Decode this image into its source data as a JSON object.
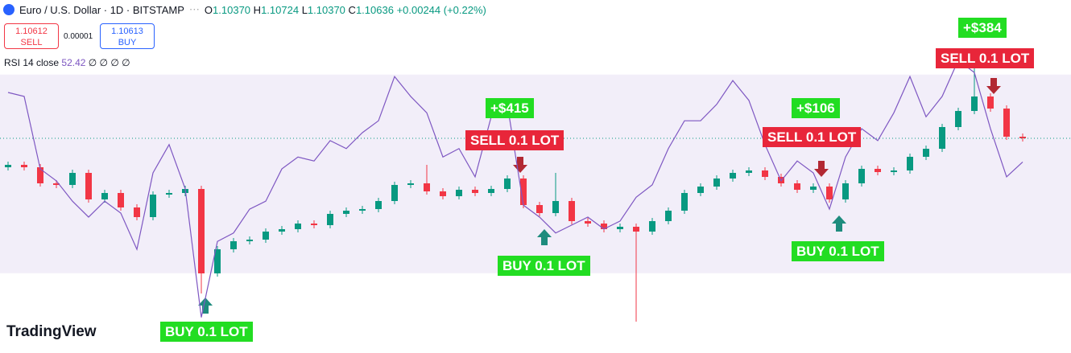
{
  "header": {
    "symbol": "Euro / U.S. Dollar · 1D · BITSTAMP",
    "ohlc": [
      {
        "label": "O",
        "value": "1.10370"
      },
      {
        "label": "H",
        "value": "1.10724"
      },
      {
        "label": "L",
        "value": "1.10370"
      },
      {
        "label": "C",
        "value": "1.10636"
      }
    ],
    "change": "+0.00244 (+0.22%)"
  },
  "trade": {
    "sell_price": "1.10612",
    "sell": "SELL",
    "spread": "0.00001",
    "buy_price": "1.10613",
    "buy": "BUY"
  },
  "logo": "TradingView",
  "chart_data": {
    "type": "candlestick",
    "ylim": [
      1.0797,
      1.1236
    ],
    "up_color": "#089981",
    "down_color": "#f23645",
    "open": [
      1.1028,
      1.1031,
      1.1028,
      1.1008,
      1.1006,
      1.1021,
      1.0988,
      1.0996,
      1.0978,
      1.0966,
      1.0994,
      1.0996,
      1.1001,
      1.0896,
      1.0926,
      1.0936,
      1.0938,
      1.0948,
      1.0951,
      1.0958,
      1.0956,
      1.097,
      1.0974,
      1.0976,
      1.0986,
      1.1006,
      1.1008,
      1.0998,
      1.0992,
      1.1,
      1.0996,
      1.1001,
      1.1014,
      1.0981,
      1.0971,
      1.0986,
      1.0961,
      1.0958,
      1.0951,
      1.0954,
      1.0948,
      1.0961,
      1.0974,
      1.0996,
      1.1004,
      1.1014,
      1.1021,
      1.1024,
      1.1016,
      1.1008,
      1.1,
      1.1004,
      1.0988,
      1.1008,
      1.1026,
      1.1022,
      1.1024,
      1.1041,
      1.1051,
      1.1078,
      1.1098,
      1.1116,
      1.1101,
      1.1066
    ],
    "high": [
      1.1035,
      1.1035,
      1.1032,
      1.1012,
      1.1025,
      1.1025,
      1.1,
      1.1,
      1.0982,
      1.0998,
      1.1,
      1.1005,
      1.1005,
      1.093,
      1.094,
      1.0942,
      1.0952,
      1.0955,
      1.0962,
      1.0962,
      1.0974,
      1.0978,
      1.098,
      1.099,
      1.101,
      1.1012,
      1.1031,
      1.1002,
      1.1004,
      1.1004,
      1.1005,
      1.1018,
      1.1018,
      1.0985,
      1.1021,
      1.099,
      1.0965,
      1.0962,
      1.0958,
      1.0958,
      1.0965,
      1.0978,
      1.1,
      1.1008,
      1.1018,
      1.1025,
      1.1028,
      1.1028,
      1.102,
      1.1012,
      1.1008,
      1.1008,
      1.1012,
      1.103,
      1.103,
      1.1028,
      1.1045,
      1.1055,
      1.1082,
      1.1102,
      1.1176,
      1.112,
      1.1105,
      1.107
    ],
    "low": [
      1.1024,
      1.1024,
      1.1004,
      1.1002,
      1.1002,
      1.0984,
      1.0984,
      1.0974,
      1.0962,
      1.0962,
      1.099,
      1.0992,
      1.0871,
      1.0892,
      1.0922,
      1.0932,
      1.0934,
      1.0944,
      1.0947,
      1.0952,
      1.0952,
      1.0966,
      1.097,
      1.0972,
      1.0982,
      1.1002,
      1.0994,
      1.0988,
      1.0988,
      1.0992,
      1.0992,
      1.0997,
      1.0977,
      1.0967,
      1.0967,
      1.0957,
      1.0954,
      1.0947,
      1.0947,
      1.0836,
      1.0944,
      1.0957,
      1.097,
      1.0992,
      1.1,
      1.101,
      1.1017,
      1.1012,
      1.1004,
      1.0996,
      1.0996,
      1.0984,
      1.0984,
      1.1004,
      1.1018,
      1.1018,
      1.102,
      1.1037,
      1.1047,
      1.1074,
      1.1094,
      1.1097,
      1.1062,
      1.106
    ],
    "close": [
      1.1031,
      1.1028,
      1.1008,
      1.1006,
      1.1021,
      1.0988,
      1.0996,
      1.0978,
      1.0966,
      1.0994,
      1.0996,
      1.1001,
      1.0896,
      1.0926,
      1.0936,
      1.0938,
      1.0948,
      1.0951,
      1.0958,
      1.0956,
      1.097,
      1.0974,
      1.0976,
      1.0986,
      1.1006,
      1.1008,
      1.0998,
      1.0992,
      1.1,
      1.0996,
      1.1001,
      1.1014,
      1.0981,
      1.0971,
      1.0986,
      1.0961,
      1.0958,
      1.0951,
      1.0954,
      1.0948,
      1.0961,
      1.0974,
      1.0996,
      1.1004,
      1.1014,
      1.1021,
      1.1024,
      1.1016,
      1.1008,
      1.1,
      1.1004,
      1.0988,
      1.1008,
      1.1026,
      1.1022,
      1.1024,
      1.1041,
      1.1051,
      1.1078,
      1.1098,
      1.1116,
      1.1101,
      1.1066,
      1.1064
    ],
    "rsi": {
      "label": "RSI 14 close",
      "last": 52.42,
      "symbols": "∅ ∅ ∅ ∅",
      "color": "#7e57c2",
      "ylim": [
        0,
        100
      ],
      "band": [
        30,
        70
      ],
      "values": [
        66.4,
        65.6,
        51.0,
        48.6,
        44.5,
        41.3,
        44.5,
        42.1,
        34.8,
        50.2,
        55.9,
        47.0,
        21.1,
        36.4,
        38.1,
        42.9,
        44.5,
        51.0,
        53.4,
        52.6,
        56.7,
        55.1,
        58.3,
        60.7,
        69.6,
        65.6,
        62.3,
        53.4,
        55.1,
        49.4,
        61.5,
        64.0,
        43.7,
        41.3,
        38.1,
        39.7,
        41.3,
        38.9,
        40.5,
        45.3,
        47.8,
        55.1,
        60.7,
        60.7,
        64.0,
        68.8,
        64.8,
        55.9,
        48.6,
        52.6,
        50.2,
        42.9,
        53.4,
        59.1,
        56.7,
        62.3,
        69.6,
        61.5,
        65.6,
        72.9,
        70.4,
        59.1,
        49.4,
        52.4
      ]
    },
    "annotations": [
      "BUY 0.1 LOT",
      "+$415",
      "SELL 0.1 LOT",
      "BUY 0.1 LOT",
      "+$106",
      "SELL 0.1 LOT",
      "BUY 0.1 LOT",
      "+$384",
      "SELL 0.1 LOT"
    ]
  }
}
